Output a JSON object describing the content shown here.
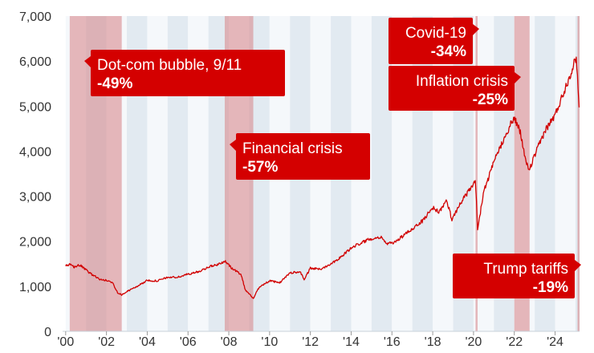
{
  "chart_data": {
    "type": "line",
    "title": "",
    "xlabel": "",
    "ylabel": "",
    "xlim": [
      1999.85,
      2025.2
    ],
    "ylim": [
      0,
      7000
    ],
    "grid": false,
    "y_ticks": [
      {
        "value": 0,
        "label": "0"
      },
      {
        "value": 1000,
        "label": "1,000"
      },
      {
        "value": 2000,
        "label": "2,000"
      },
      {
        "value": 3000,
        "label": "3,000"
      },
      {
        "value": 4000,
        "label": "4,000"
      },
      {
        "value": 5000,
        "label": "5,000"
      },
      {
        "value": 6000,
        "label": "6,000"
      },
      {
        "value": 7000,
        "label": "7,000"
      }
    ],
    "x_ticks": [
      {
        "value": 2000,
        "label": "'00"
      },
      {
        "value": 2002,
        "label": "'02"
      },
      {
        "value": 2004,
        "label": "'04"
      },
      {
        "value": 2006,
        "label": "'06"
      },
      {
        "value": 2008,
        "label": "'08"
      },
      {
        "value": 2010,
        "label": "'10"
      },
      {
        "value": 2012,
        "label": "'12"
      },
      {
        "value": 2014,
        "label": "'14"
      },
      {
        "value": 2016,
        "label": "'16"
      },
      {
        "value": 2018,
        "label": "'18"
      },
      {
        "value": 2020,
        "label": "'20"
      },
      {
        "value": 2022,
        "label": "'22"
      },
      {
        "value": 2024,
        "label": "'24"
      }
    ],
    "crisis_periods": [
      {
        "start": 2000.2,
        "end": 2002.75
      },
      {
        "start": 2007.8,
        "end": 2009.2
      },
      {
        "start": 2020.1,
        "end": 2020.2
      },
      {
        "start": 2022.0,
        "end": 2022.75
      },
      {
        "start": 2025.1,
        "end": 2025.2
      }
    ],
    "annotations": [
      {
        "title": "Dot-com bubble, 9/11",
        "value": "-49%"
      },
      {
        "title": "Financial crisis",
        "value": "-57%"
      },
      {
        "title": "Covid-19",
        "value": "-34%"
      },
      {
        "title": "Inflation crisis",
        "value": "-25%"
      },
      {
        "title": "Trump tariffs",
        "value": "-19%"
      }
    ],
    "series": [
      {
        "color": "#d10000",
        "x": [
          2000.0,
          2000.2,
          2000.4,
          2000.7,
          2001.0,
          2001.3,
          2001.7,
          2002.0,
          2002.3,
          2002.55,
          2002.75,
          2003.0,
          2003.5,
          2004.0,
          2004.5,
          2005.0,
          2005.5,
          2006.0,
          2006.5,
          2007.0,
          2007.5,
          2007.8,
          2008.2,
          2008.6,
          2008.8,
          2009.2,
          2009.5,
          2010.0,
          2010.5,
          2011.0,
          2011.5,
          2011.7,
          2012.0,
          2012.5,
          2013.0,
          2013.5,
          2014.0,
          2014.5,
          2015.0,
          2015.5,
          2015.7,
          2016.0,
          2016.5,
          2017.0,
          2017.5,
          2018.0,
          2018.3,
          2018.7,
          2018.95,
          2019.0,
          2019.5,
          2020.0,
          2020.1,
          2020.2,
          2020.5,
          2021.0,
          2021.5,
          2022.0,
          2022.3,
          2022.6,
          2022.75,
          2023.0,
          2023.5,
          2024.0,
          2024.5,
          2024.9,
          2025.05,
          2025.1,
          2025.18
        ],
        "y": [
          1450,
          1480,
          1430,
          1470,
          1360,
          1260,
          1150,
          1130,
          1080,
          860,
          810,
          880,
          1000,
          1130,
          1120,
          1200,
          1200,
          1270,
          1320,
          1430,
          1490,
          1560,
          1380,
          1270,
          930,
          730,
          990,
          1120,
          1080,
          1300,
          1320,
          1150,
          1400,
          1380,
          1500,
          1650,
          1850,
          1970,
          2060,
          2100,
          1950,
          1950,
          2100,
          2280,
          2450,
          2750,
          2650,
          2900,
          2450,
          2550,
          2950,
          3250,
          3350,
          2250,
          3100,
          3750,
          4300,
          4750,
          4400,
          3700,
          3600,
          3900,
          4450,
          4800,
          5400,
          5900,
          6100,
          5600,
          4950
        ]
      }
    ]
  }
}
